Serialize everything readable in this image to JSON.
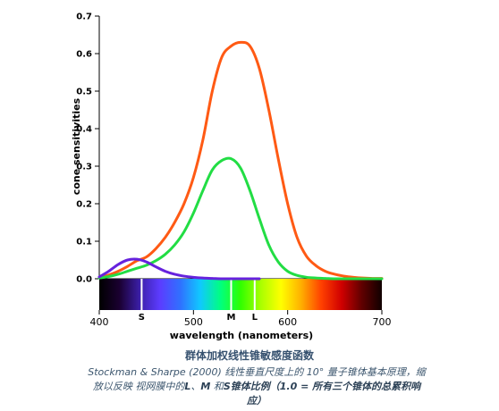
{
  "chart_data": {
    "type": "line",
    "title": "",
    "xlabel": "wavelength (nanometers)",
    "ylabel": "cone sensitivities",
    "xlim": [
      400,
      700
    ],
    "ylim": [
      0,
      0.7
    ],
    "x_ticks": [
      "400",
      "500",
      "600",
      "700"
    ],
    "y_ticks": [
      "0.0",
      "0.1",
      "0.2",
      "0.3",
      "0.4",
      "0.5",
      "0.6",
      "0.7"
    ],
    "grid": false,
    "legend": "none",
    "series": [
      {
        "color": "#ff5a14",
        "x": [
          400,
          410,
          420,
          430,
          440,
          450,
          460,
          470,
          480,
          490,
          500,
          510,
          520,
          530,
          540,
          550,
          560,
          570,
          580,
          590,
          600,
          610,
          620,
          630,
          640,
          650,
          660,
          670,
          680,
          690,
          700
        ],
        "y": [
          0.003,
          0.01,
          0.02,
          0.033,
          0.048,
          0.058,
          0.08,
          0.11,
          0.15,
          0.2,
          0.27,
          0.37,
          0.5,
          0.59,
          0.62,
          0.63,
          0.62,
          0.56,
          0.45,
          0.32,
          0.2,
          0.11,
          0.06,
          0.035,
          0.02,
          0.012,
          0.007,
          0.004,
          0.002,
          0.001,
          0.001
        ]
      },
      {
        "color": "#22dd44",
        "x": [
          400,
          410,
          420,
          430,
          440,
          450,
          460,
          470,
          480,
          490,
          500,
          510,
          520,
          530,
          540,
          550,
          560,
          570,
          580,
          590,
          600,
          610,
          620,
          630,
          640,
          650,
          660,
          670,
          680,
          690,
          700
        ],
        "y": [
          0.002,
          0.006,
          0.012,
          0.02,
          0.028,
          0.036,
          0.048,
          0.065,
          0.09,
          0.125,
          0.175,
          0.235,
          0.29,
          0.315,
          0.32,
          0.295,
          0.235,
          0.16,
          0.09,
          0.045,
          0.02,
          0.009,
          0.004,
          0.002,
          0.001,
          0.0,
          0.0,
          0.0,
          0.0,
          0.0,
          0.0
        ]
      },
      {
        "color": "#6622dd",
        "x": [
          400,
          410,
          420,
          430,
          440,
          450,
          460,
          470,
          480,
          490,
          500,
          510,
          520,
          530,
          540,
          550,
          560,
          570
        ],
        "y": [
          0.005,
          0.02,
          0.038,
          0.05,
          0.052,
          0.045,
          0.032,
          0.02,
          0.012,
          0.007,
          0.004,
          0.002,
          0.001,
          0.0,
          0.0,
          0.0,
          0.0,
          0.0
        ]
      }
    ],
    "cone_markers": [
      {
        "label": "S",
        "x": 445
      },
      {
        "label": "M",
        "x": 540
      },
      {
        "label": "L",
        "x": 565
      }
    ]
  },
  "caption": {
    "title": "群体加权线性锥敏感度函数",
    "line1": "Stockman & Sharpe (2000) 线性垂直尺度上的 10° 量子锥体基本原理，缩",
    "line2_prefix": "放以反映 视网膜中的",
    "cone_l": "L",
    "sep1": "、",
    "cone_m": "M",
    "and": " 和",
    "cone_s": "S",
    "bold_part": "锥体比例（1.0 = 所有三个锥体的总累积响应）"
  },
  "colors": {
    "spectrum_stops": [
      "#000000",
      "#1a0030",
      "#3b1fa8",
      "#5c3cff",
      "#3070ff",
      "#10c8ff",
      "#00ff80",
      "#30ff00",
      "#a8ff00",
      "#ffff00",
      "#ffb000",
      "#ff4000",
      "#d00000",
      "#600000",
      "#100000"
    ]
  }
}
